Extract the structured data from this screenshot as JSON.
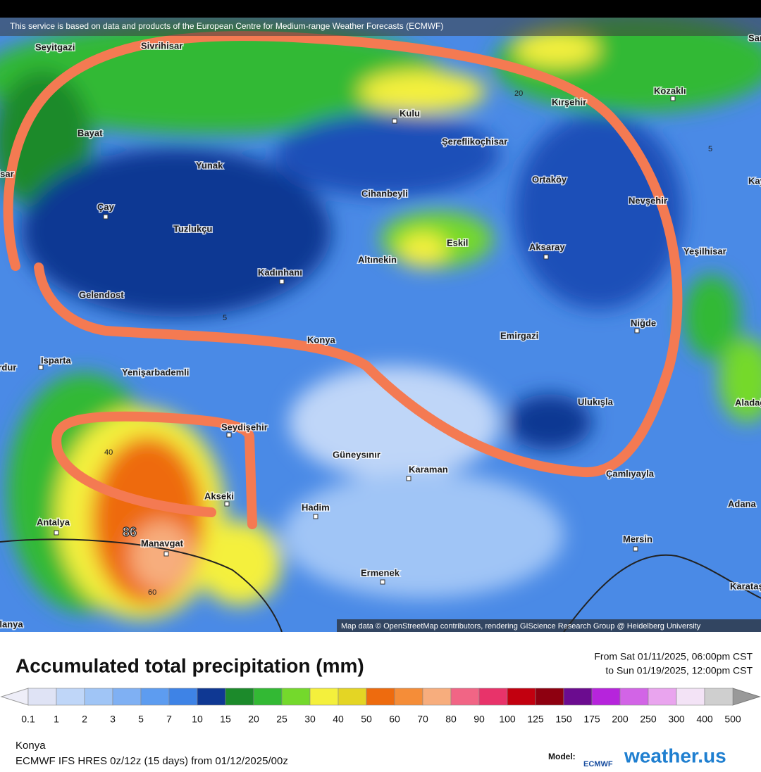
{
  "banner": "This service is based on data and products of the European Centre for Medium-range Weather Forecasts (ECMWF)",
  "attribution": "Map data © OpenStreetMap contributors, rendering GIScience Research Group @ Heidelberg University",
  "places": [
    "Seyitgazi",
    "Sivrihisar",
    "Sarıkaya",
    "Kozaklı",
    "Kulu",
    "Kırşehir",
    "Bayat",
    "Şereflikoçhisar",
    "Yunak",
    "Afyonkarahisar",
    "Cihanbeyli",
    "Ortaköy",
    "Nevşehir",
    "Çay",
    "Tuzlukçu",
    "Eskil",
    "Aksaray",
    "Yeşilhisar",
    "Altınekin",
    "Kadınhanı",
    "Gelendost",
    "Niğde",
    "Emirgazi",
    "Konya",
    "Isparta",
    "Burdur",
    "Yenişarbademli",
    "Ulukışla",
    "Aladağ",
    "Seydişehir",
    "Güneysınır",
    "Karaman",
    "Akseki",
    "Hadim",
    "Çamlıyayla",
    "Adana",
    "Antalya",
    "Manavgat",
    "Mersin",
    "Ermenek",
    "Karataş",
    "Alanya",
    "Kayseri"
  ],
  "contours": [
    20,
    5,
    5,
    40,
    60
  ],
  "max_value": 86,
  "legend": {
    "title": "Accumulated total precipitation (mm)",
    "from": "From Sat 01/11/2025, 06:00pm CST",
    "to": "to Sun 01/19/2025, 12:00pm CST",
    "ticks": [
      0.1,
      1,
      2,
      3,
      5,
      7,
      10,
      15,
      20,
      25,
      30,
      40,
      50,
      60,
      70,
      80,
      90,
      100,
      125,
      150,
      175,
      200,
      250,
      300,
      400,
      500
    ],
    "colors": [
      "#dfe3f5",
      "#bfd6f8",
      "#a0c5f6",
      "#7fb0f3",
      "#5d9cf0",
      "#3e83e6",
      "#0f3893",
      "#1c8a2b",
      "#33b934",
      "#74d92c",
      "#f4f03c",
      "#e4d524",
      "#ee6b0e",
      "#f58d38",
      "#f7ad7d",
      "#f16585",
      "#e8336a",
      "#c2000f",
      "#8e0010",
      "#6b0c8f",
      "#b624dc",
      "#d264e6",
      "#e9a4ee",
      "#f3e3f6",
      "#cfcfcf"
    ]
  },
  "location": "Konya",
  "model_run": "ECMWF IFS HRES 0z/12z (15 days) from 01/12/2025/00z",
  "model_label": "Model:",
  "model_name": "ECMWF",
  "brand": "weather.us"
}
